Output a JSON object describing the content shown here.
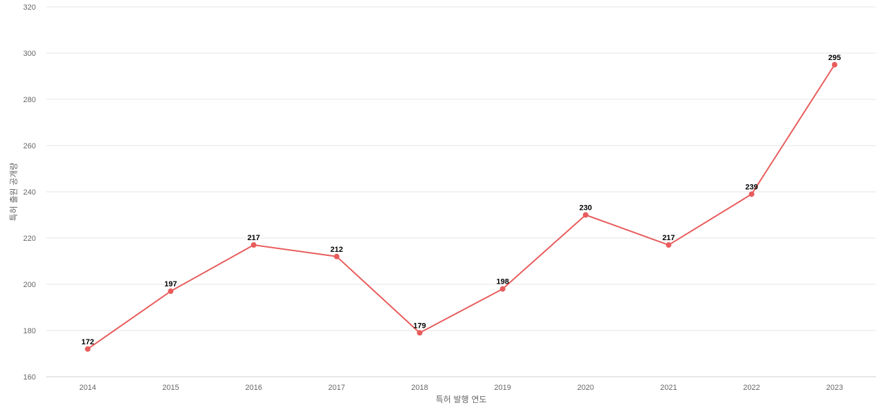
{
  "chart_data": {
    "type": "line",
    "title": "",
    "xlabel": "특허 발행 연도",
    "ylabel": "특허 출원 공개량",
    "x": [
      "2014",
      "2015",
      "2016",
      "2017",
      "2018",
      "2019",
      "2020",
      "2021",
      "2022",
      "2023"
    ],
    "series": [
      {
        "values": [
          172,
          197,
          217,
          212,
          179,
          198,
          230,
          217,
          239,
          295
        ],
        "color": "#e85c5c"
      }
    ],
    "ylim": [
      160,
      320
    ],
    "yticks": [
      160,
      180,
      200,
      220,
      240,
      260,
      280,
      300,
      320
    ],
    "grid": true,
    "legend": "none",
    "data_labels": true
  }
}
